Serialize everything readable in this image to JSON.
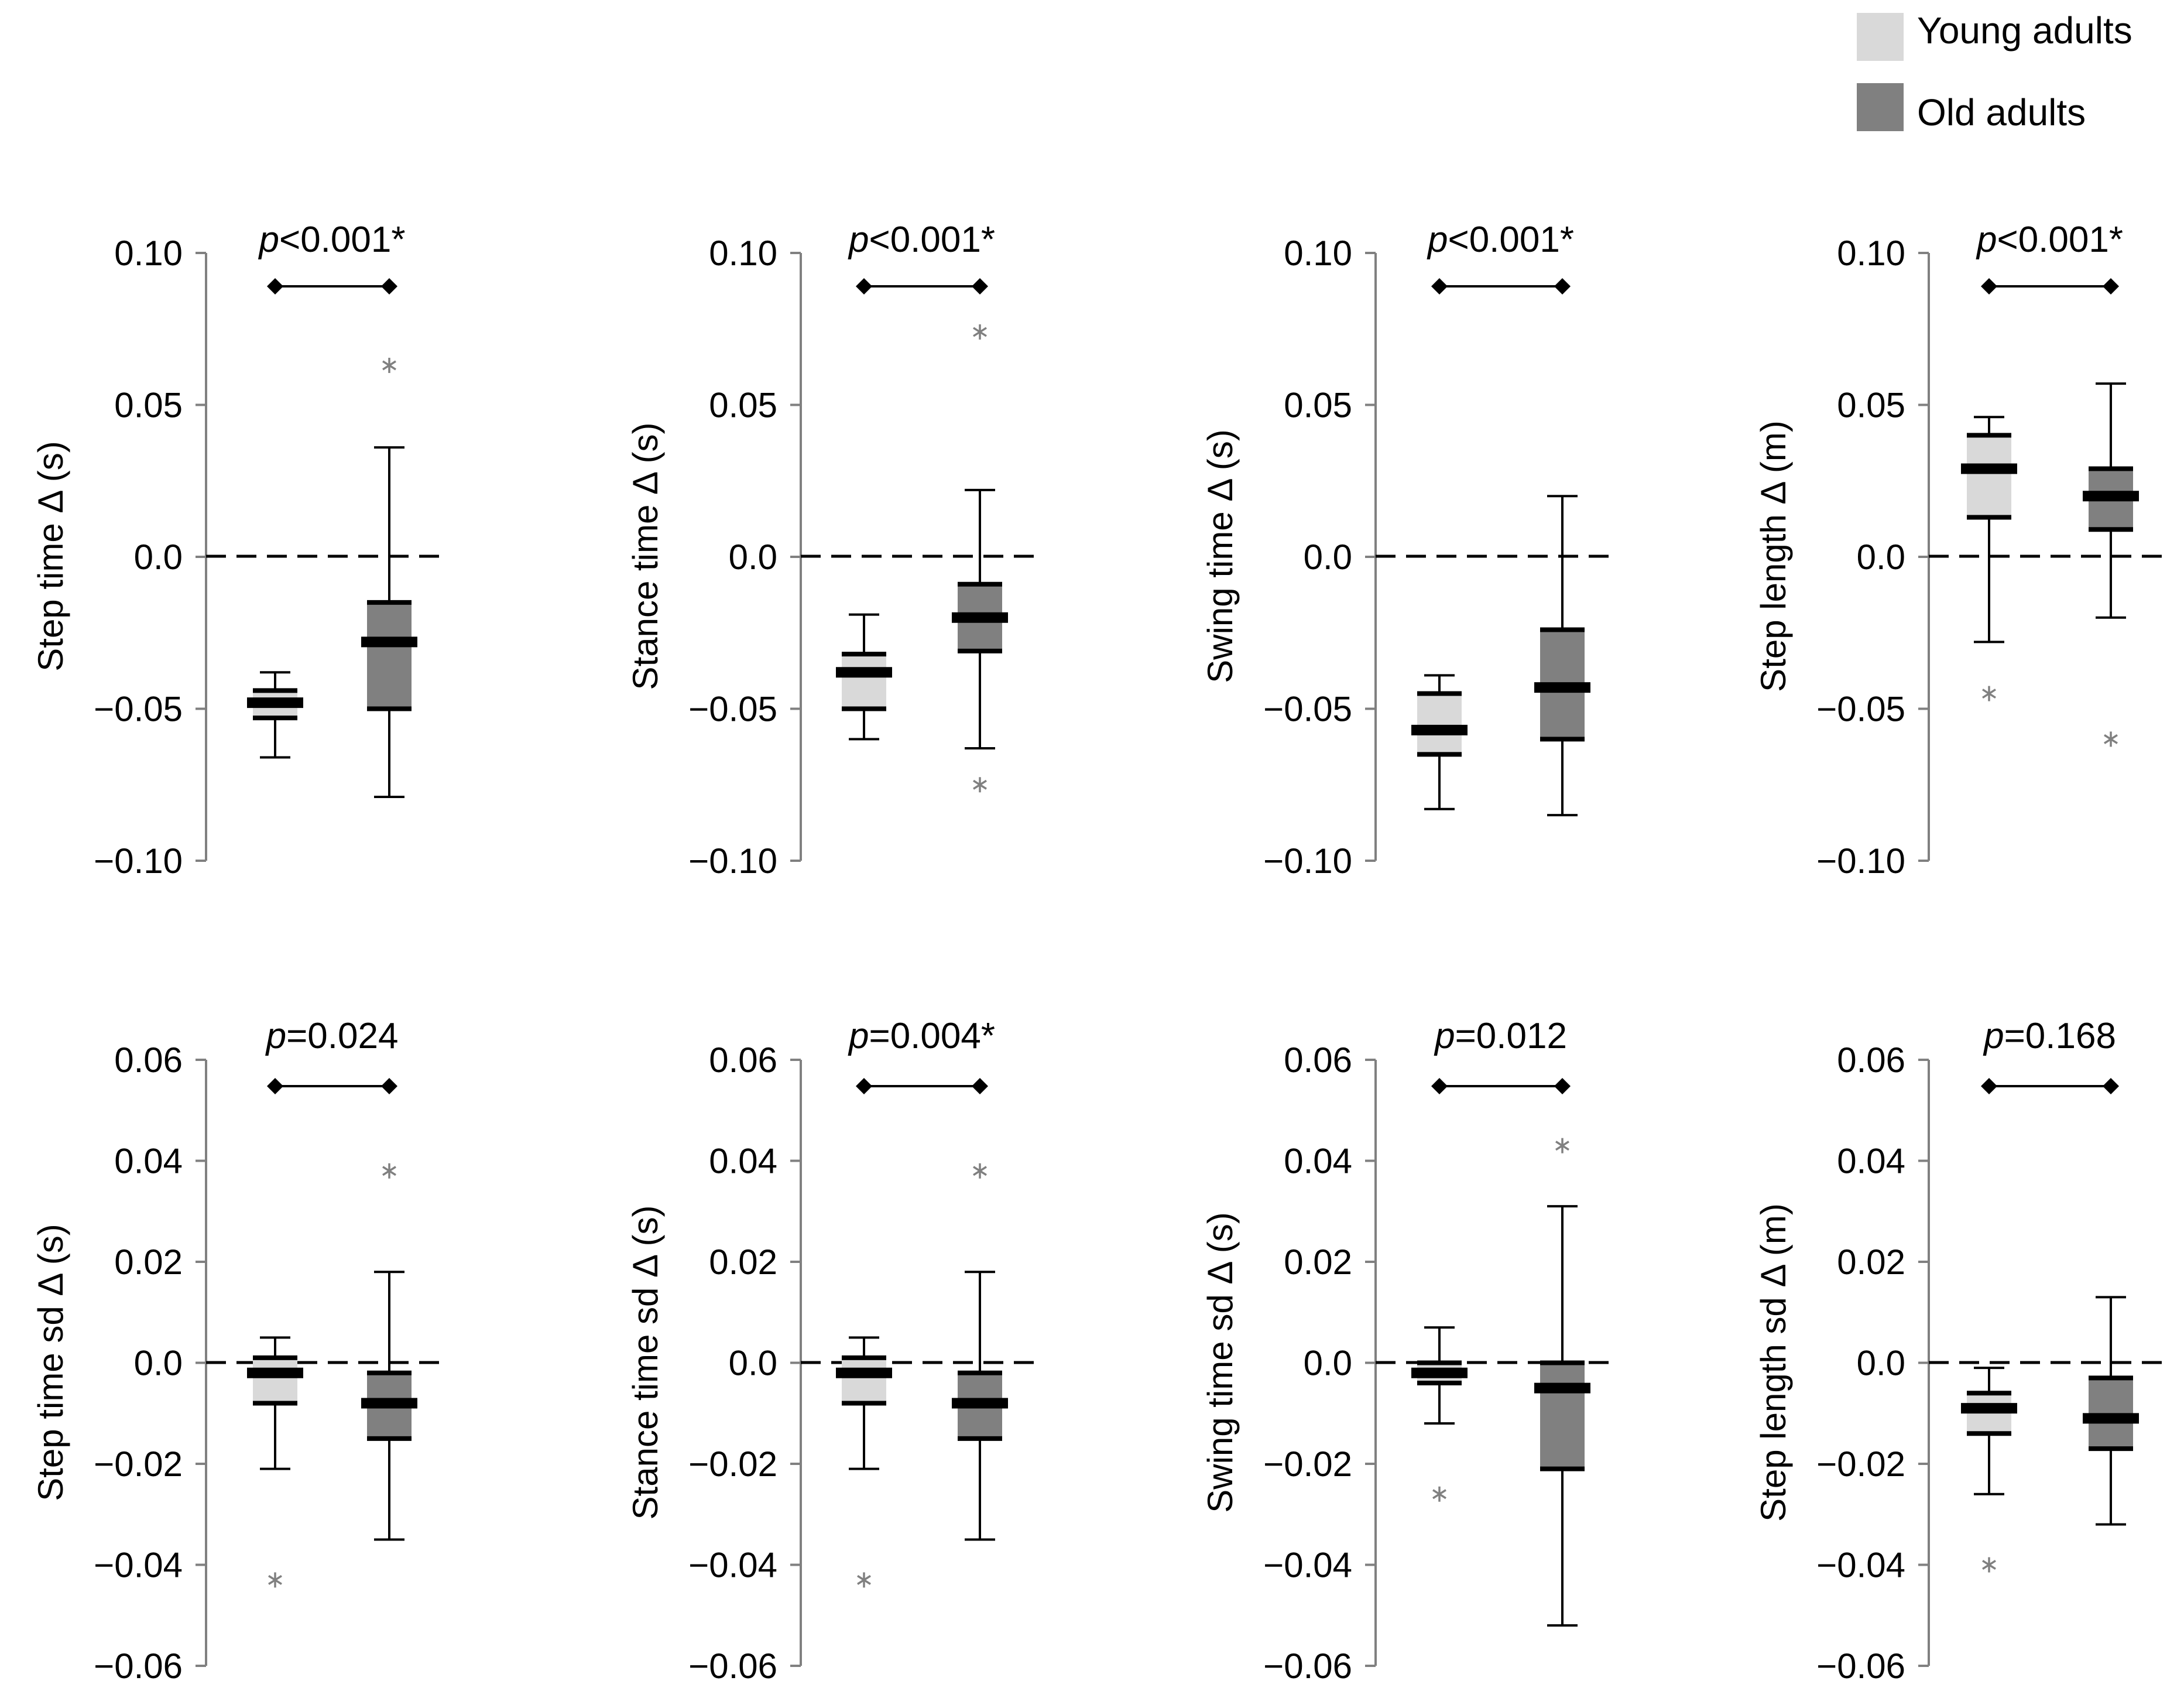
{
  "legend": [
    {
      "label": "Young adults",
      "color": "#d9d9d9"
    },
    {
      "label": "Old adults",
      "color": "#808080"
    }
  ],
  "colors": {
    "young": "#d9d9d9",
    "old": "#808080",
    "outlier": "#808080",
    "line": "#000000"
  },
  "chart_data": [
    {
      "type": "box",
      "ylabel": "Step time Δ (s)",
      "p_prefix": "p",
      "p_value": "<0.001*",
      "ylim": [
        -0.1,
        0.1
      ],
      "ticks": [
        0.1,
        0.05,
        0.0,
        -0.05,
        -0.1
      ],
      "tick_labels": [
        "0.10",
        "0.05",
        "0.0",
        "−0.05",
        "−0.10"
      ],
      "groups": [
        {
          "name": "Young adults",
          "whisker_low": -0.066,
          "q1": -0.053,
          "median": -0.048,
          "q3": -0.044,
          "whisker_high": -0.038,
          "outliers": []
        },
        {
          "name": "Old adults",
          "whisker_low": -0.079,
          "q1": -0.05,
          "median": -0.028,
          "q3": -0.015,
          "whisker_high": 0.036,
          "outliers": [
            0.063
          ]
        }
      ]
    },
    {
      "type": "box",
      "ylabel": "Stance time Δ (s)",
      "p_prefix": "p",
      "p_value": "<0.001*",
      "ylim": [
        -0.1,
        0.1
      ],
      "ticks": [
        0.1,
        0.05,
        0.0,
        -0.05,
        -0.1
      ],
      "tick_labels": [
        "0.10",
        "0.05",
        "0.0",
        "−0.05",
        "−0.10"
      ],
      "groups": [
        {
          "name": "Young adults",
          "whisker_low": -0.06,
          "q1": -0.05,
          "median": -0.038,
          "q3": -0.032,
          "whisker_high": -0.019,
          "outliers": []
        },
        {
          "name": "Old adults",
          "whisker_low": -0.063,
          "q1": -0.031,
          "median": -0.02,
          "q3": -0.009,
          "whisker_high": 0.022,
          "outliers": [
            0.074,
            -0.075
          ]
        }
      ]
    },
    {
      "type": "box",
      "ylabel": "Swing time Δ (s)",
      "p_prefix": "p",
      "p_value": "<0.001*",
      "ylim": [
        -0.1,
        0.1
      ],
      "ticks": [
        0.1,
        0.05,
        0.0,
        -0.05,
        -0.1
      ],
      "tick_labels": [
        "0.10",
        "0.05",
        "0.0",
        "−0.05",
        "−0.10"
      ],
      "groups": [
        {
          "name": "Young adults",
          "whisker_low": -0.083,
          "q1": -0.065,
          "median": -0.057,
          "q3": -0.045,
          "whisker_high": -0.039,
          "outliers": []
        },
        {
          "name": "Old adults",
          "whisker_low": -0.085,
          "q1": -0.06,
          "median": -0.043,
          "q3": -0.024,
          "whisker_high": 0.02,
          "outliers": []
        }
      ]
    },
    {
      "type": "box",
      "ylabel": "Step length Δ (m)",
      "p_prefix": "p",
      "p_value": "<0.001*",
      "ylim": [
        -0.1,
        0.1
      ],
      "ticks": [
        0.1,
        0.05,
        0.0,
        -0.05,
        -0.1
      ],
      "tick_labels": [
        "0.10",
        "0.05",
        "0.0",
        "−0.05",
        "−0.10"
      ],
      "groups": [
        {
          "name": "Young adults",
          "whisker_low": -0.028,
          "q1": 0.013,
          "median": 0.029,
          "q3": 0.04,
          "whisker_high": 0.046,
          "outliers": [
            -0.045
          ]
        },
        {
          "name": "Old adults",
          "whisker_low": -0.02,
          "q1": 0.009,
          "median": 0.02,
          "q3": 0.029,
          "whisker_high": 0.057,
          "outliers": [
            -0.06
          ]
        }
      ]
    },
    {
      "type": "box",
      "ylabel": "Step time sd Δ (s)",
      "p_prefix": "p",
      "p_value": "=0.024",
      "ylim": [
        -0.06,
        0.06
      ],
      "ticks": [
        0.06,
        0.04,
        0.02,
        0.0,
        -0.02,
        -0.04,
        -0.06
      ],
      "tick_labels": [
        "0.06",
        "0.04",
        "0.02",
        "0.0",
        "−0.02",
        "−0.04",
        "−0.06"
      ],
      "groups": [
        {
          "name": "Young adults",
          "whisker_low": -0.021,
          "q1": -0.008,
          "median": -0.002,
          "q3": 0.001,
          "whisker_high": 0.005,
          "outliers": [
            -0.043
          ]
        },
        {
          "name": "Old adults",
          "whisker_low": -0.035,
          "q1": -0.015,
          "median": -0.008,
          "q3": -0.002,
          "whisker_high": 0.018,
          "outliers": [
            0.038
          ]
        }
      ]
    },
    {
      "type": "box",
      "ylabel": "Stance time sd Δ (s)",
      "p_prefix": "p",
      "p_value": "=0.004*",
      "ylim": [
        -0.06,
        0.06
      ],
      "ticks": [
        0.06,
        0.04,
        0.02,
        0.0,
        -0.02,
        -0.04,
        -0.06
      ],
      "tick_labels": [
        "0.06",
        "0.04",
        "0.02",
        "0.0",
        "−0.02",
        "−0.04",
        "−0.06"
      ],
      "groups": [
        {
          "name": "Young adults",
          "whisker_low": -0.021,
          "q1": -0.008,
          "median": -0.002,
          "q3": 0.001,
          "whisker_high": 0.005,
          "outliers": [
            -0.043
          ]
        },
        {
          "name": "Old adults",
          "whisker_low": -0.035,
          "q1": -0.015,
          "median": -0.008,
          "q3": -0.002,
          "whisker_high": 0.018,
          "outliers": [
            0.038
          ]
        }
      ]
    },
    {
      "type": "box",
      "ylabel": "Swing time sd Δ (s)",
      "p_prefix": "p",
      "p_value": "=0.012",
      "ylim": [
        -0.06,
        0.06
      ],
      "ticks": [
        0.06,
        0.04,
        0.02,
        0.0,
        -0.02,
        -0.04,
        -0.06
      ],
      "tick_labels": [
        "0.06",
        "0.04",
        "0.02",
        "0.0",
        "−0.02",
        "−0.04",
        "−0.06"
      ],
      "groups": [
        {
          "name": "Young adults",
          "whisker_low": -0.012,
          "q1": -0.004,
          "median": -0.002,
          "q3": 0.0,
          "whisker_high": 0.007,
          "outliers": [
            -0.026
          ]
        },
        {
          "name": "Old adults",
          "whisker_low": -0.052,
          "q1": -0.021,
          "median": -0.005,
          "q3": 0.0,
          "whisker_high": 0.031,
          "outliers": [
            0.043
          ]
        }
      ]
    },
    {
      "type": "box",
      "ylabel": "Step length sd Δ (m)",
      "p_prefix": "p",
      "p_value": "=0.168",
      "ylim": [
        -0.06,
        0.06
      ],
      "ticks": [
        0.06,
        0.04,
        0.02,
        0.0,
        -0.02,
        -0.04,
        -0.06
      ],
      "tick_labels": [
        "0.06",
        "0.04",
        "0.02",
        "0.0",
        "−0.02",
        "−0.04",
        "−0.06"
      ],
      "groups": [
        {
          "name": "Young adults",
          "whisker_low": -0.026,
          "q1": -0.014,
          "median": -0.009,
          "q3": -0.006,
          "whisker_high": -0.001,
          "outliers": [
            -0.04
          ]
        },
        {
          "name": "Old adults",
          "whisker_low": -0.032,
          "q1": -0.017,
          "median": -0.011,
          "q3": -0.003,
          "whisker_high": 0.013,
          "outliers": []
        }
      ]
    }
  ]
}
